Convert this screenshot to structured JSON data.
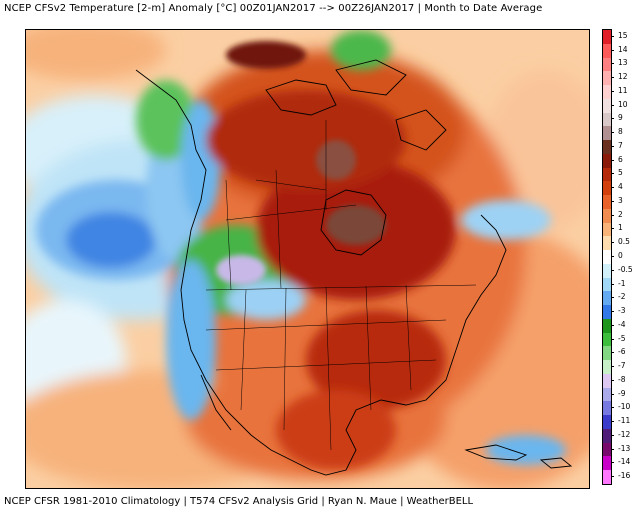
{
  "header": {
    "title": "NCEP CFSv2 Temperature [2-m] Anomaly  [°C] 00Z01JAN2017 --> 00Z26JAN2017 | Month to Date Average"
  },
  "footer": {
    "credits": "NCEP CFSR 1981-2010 Climatology | T574 CFSv2 Analysis Grid | Ryan N. Maue | WeatherBELL"
  },
  "legend": {
    "labels": [
      "15",
      "14",
      "13",
      "12",
      "11",
      "10",
      "9",
      "8",
      "7",
      "6",
      "5",
      "4",
      "3",
      "2",
      "1",
      "0.5",
      "0",
      "-0.5",
      "-1",
      "-2",
      "-3",
      "-4",
      "-5",
      "-6",
      "-7",
      "-8",
      "-9",
      "-10",
      "-11",
      "-12",
      "-13",
      "-14",
      "-16"
    ],
    "colors": [
      "#e01f28",
      "#ff5a5a",
      "#ff8080",
      "#ffb0b0",
      "#ffd0d0",
      "#f0e0e0",
      "#d8c8c8",
      "#b09090",
      "#6a3020",
      "#8a1a0a",
      "#b42a0a",
      "#d2400e",
      "#e8622a",
      "#f08c50",
      "#f8b478",
      "#fddcb0",
      "#ffffff",
      "#d2f0fa",
      "#a0d8f5",
      "#64aaf0",
      "#3278e6",
      "#1e961e",
      "#3cbe3c",
      "#82d782",
      "#c8f0c8",
      "#dcc8f0",
      "#aaaaeb",
      "#7878e1",
      "#3c3ccc",
      "#501e78",
      "#780a6e",
      "#c800c8",
      "#ff78ff"
    ]
  }
}
